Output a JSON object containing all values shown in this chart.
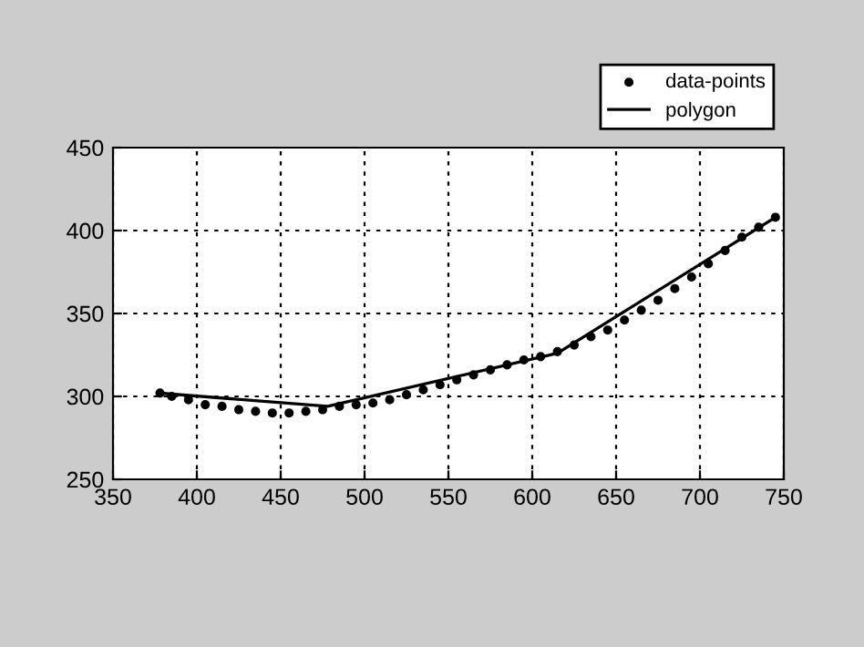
{
  "chart_data": {
    "type": "scatter",
    "xlim": [
      350,
      750
    ],
    "ylim": [
      250,
      450
    ],
    "xticks": [
      350,
      400,
      450,
      500,
      550,
      600,
      650,
      700,
      750
    ],
    "yticks": [
      250,
      300,
      350,
      400,
      450
    ],
    "grid": true,
    "legend": "top right",
    "series": [
      {
        "name": "data-points",
        "marker": "circle",
        "color": "#000000",
        "x": [
          378,
          385,
          395,
          405,
          415,
          425,
          435,
          445,
          455,
          465,
          475,
          485,
          495,
          505,
          515,
          525,
          535,
          545,
          555,
          565,
          575,
          585,
          595,
          605,
          615,
          625,
          635,
          645,
          655,
          665,
          675,
          685,
          695,
          705,
          715,
          725,
          735,
          745
        ],
        "values": [
          302,
          300,
          298,
          295,
          294,
          292,
          291,
          290,
          290,
          291,
          292,
          294,
          295,
          296,
          298,
          301,
          304,
          307,
          310,
          313,
          316,
          319,
          322,
          324,
          327,
          331,
          336,
          340,
          346,
          352,
          358,
          365,
          372,
          380,
          388,
          396,
          402,
          408
        ]
      },
      {
        "name": "polygon",
        "type": "line",
        "marker": "none",
        "line_style": "solid",
        "color": "#000000",
        "x": [
          378,
          478,
          615,
          745
        ],
        "values": [
          302,
          294,
          326,
          408
        ]
      }
    ]
  }
}
